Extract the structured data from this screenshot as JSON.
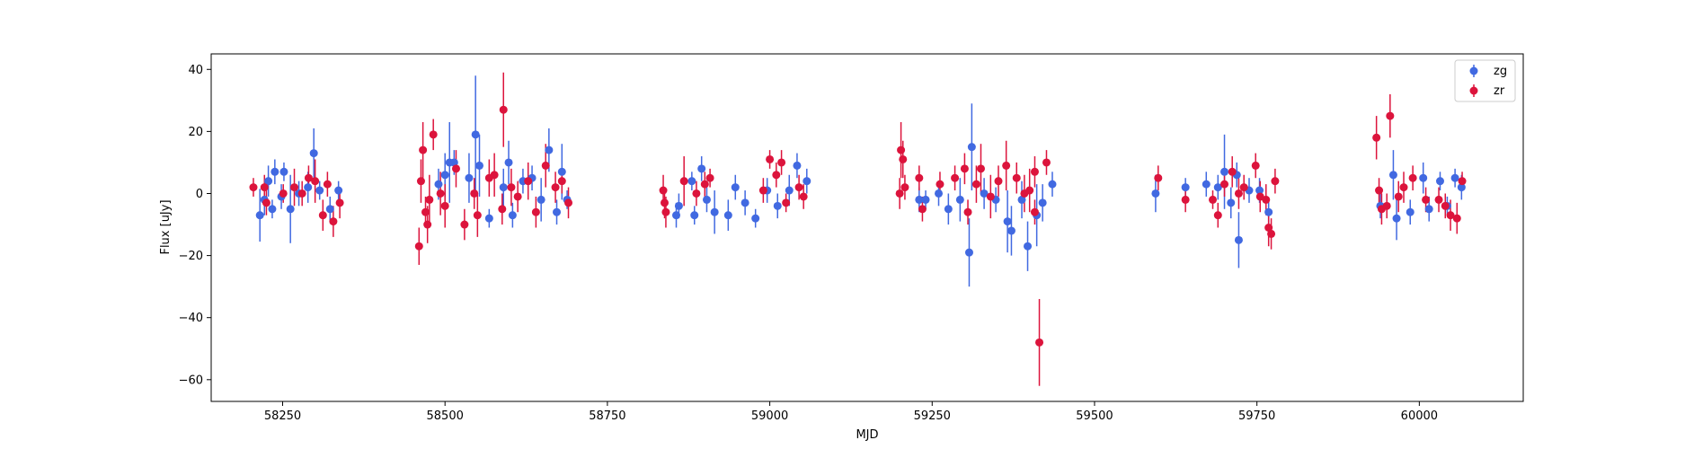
{
  "chart_data": {
    "type": "scatter",
    "xlabel": "MJD",
    "ylabel": "Flux [uJy]",
    "xlim": [
      58140,
      60160
    ],
    "ylim": [
      -67,
      45
    ],
    "xticks": [
      58250,
      58500,
      58750,
      59000,
      59250,
      59500,
      59750,
      60000
    ],
    "yticks": [
      -60,
      -40,
      -20,
      0,
      20,
      40
    ],
    "xtick_labels": [
      "58250",
      "58500",
      "58750",
      "59000",
      "59250",
      "59500",
      "59750",
      "60000"
    ],
    "ytick_labels": [
      "−60",
      "−40",
      "−20",
      "0",
      "20",
      "40"
    ],
    "grid": false,
    "legend_position": "top-right",
    "error_bars": true,
    "series": [
      {
        "name": "zg",
        "color": "#4169e1",
        "points": [
          [
            58215,
            -7,
            8.5
          ],
          [
            58222,
            -2,
            5
          ],
          [
            58228,
            4,
            5
          ],
          [
            58234,
            -5,
            3
          ],
          [
            58238,
            7,
            4
          ],
          [
            58248,
            -1,
            4
          ],
          [
            58252,
            7,
            3
          ],
          [
            58262,
            -5,
            11
          ],
          [
            58275,
            0,
            4
          ],
          [
            58289,
            2,
            5
          ],
          [
            58298,
            13,
            8
          ],
          [
            58307,
            1,
            3
          ],
          [
            58323,
            -5,
            4
          ],
          [
            58336,
            1,
            3
          ],
          [
            58490,
            3,
            5
          ],
          [
            58500,
            6,
            7
          ],
          [
            58507,
            10,
            13
          ],
          [
            58514,
            10,
            4
          ],
          [
            58537,
            5,
            8
          ],
          [
            58547,
            19,
            19
          ],
          [
            58553,
            9,
            10
          ],
          [
            58568,
            -8,
            3
          ],
          [
            58590,
            2,
            6
          ],
          [
            58598,
            10,
            7
          ],
          [
            58604,
            -7,
            4
          ],
          [
            58620,
            4,
            4
          ],
          [
            58634,
            5,
            4
          ],
          [
            58648,
            -2,
            7
          ],
          [
            58660,
            14,
            7
          ],
          [
            58672,
            -6,
            4
          ],
          [
            58680,
            7,
            9
          ],
          [
            58688,
            -2,
            3
          ],
          [
            58856,
            -7,
            4
          ],
          [
            58860,
            -4,
            4
          ],
          [
            58880,
            4,
            3
          ],
          [
            58884,
            -7,
            3
          ],
          [
            58895,
            8,
            4
          ],
          [
            58903,
            -2,
            4
          ],
          [
            58915,
            -6,
            7
          ],
          [
            58936,
            -7,
            5
          ],
          [
            58947,
            2,
            4
          ],
          [
            58962,
            -3,
            4
          ],
          [
            58978,
            -8,
            3
          ],
          [
            58996,
            1,
            4
          ],
          [
            59012,
            -4,
            4
          ],
          [
            59030,
            1,
            5
          ],
          [
            59042,
            9,
            4
          ],
          [
            59057,
            4,
            4
          ],
          [
            59230,
            -2,
            4
          ],
          [
            59240,
            -2,
            3
          ],
          [
            59260,
            0,
            4
          ],
          [
            59275,
            -5,
            5
          ],
          [
            59293,
            -2,
            7
          ],
          [
            59307,
            -19,
            11
          ],
          [
            59311,
            15,
            14
          ],
          [
            59330,
            0,
            5
          ],
          [
            59348,
            -2,
            4
          ],
          [
            59366,
            -9,
            10
          ],
          [
            59372,
            -12,
            8
          ],
          [
            59388,
            -2,
            6
          ],
          [
            59397,
            -17,
            8
          ],
          [
            59411,
            -7,
            10
          ],
          [
            59420,
            -3,
            6
          ],
          [
            59435,
            3,
            4
          ],
          [
            59594,
            0,
            6
          ],
          [
            59640,
            2,
            3
          ],
          [
            59672,
            3,
            4
          ],
          [
            59690,
            2,
            4
          ],
          [
            59700,
            7,
            12
          ],
          [
            59710,
            -3,
            5
          ],
          [
            59719,
            6,
            4
          ],
          [
            59722,
            -15,
            9
          ],
          [
            59738,
            1,
            4
          ],
          [
            59754,
            1,
            4
          ],
          [
            59768,
            -6,
            4
          ],
          [
            59940,
            -4,
            4
          ],
          [
            59960,
            6,
            8
          ],
          [
            59965,
            -8,
            7
          ],
          [
            59986,
            -6,
            4
          ],
          [
            60006,
            5,
            5
          ],
          [
            60015,
            -5,
            4
          ],
          [
            60032,
            4,
            3
          ],
          [
            60043,
            -4,
            3
          ],
          [
            60055,
            5,
            3
          ],
          [
            60065,
            2,
            4
          ]
        ]
      },
      {
        "name": "zr",
        "color": "#dc143c",
        "points": [
          [
            58205,
            2,
            3
          ],
          [
            58222,
            2,
            4
          ],
          [
            58225,
            -3,
            4
          ],
          [
            58251,
            0,
            3
          ],
          [
            58268,
            2,
            6
          ],
          [
            58280,
            0,
            4
          ],
          [
            58290,
            5,
            4
          ],
          [
            58300,
            4,
            7
          ],
          [
            58312,
            -7,
            5
          ],
          [
            58319,
            3,
            4
          ],
          [
            58328,
            -9,
            5
          ],
          [
            58338,
            -3,
            5
          ],
          [
            58460,
            -17,
            6
          ],
          [
            58463,
            4,
            7
          ],
          [
            58466,
            14,
            9
          ],
          [
            58470,
            -6,
            5
          ],
          [
            58473,
            -10,
            6
          ],
          [
            58476,
            -2,
            8
          ],
          [
            58482,
            19,
            5
          ],
          [
            58493,
            0,
            7
          ],
          [
            58500,
            -4,
            7
          ],
          [
            58517,
            8,
            6
          ],
          [
            58530,
            -10,
            5
          ],
          [
            58545,
            0,
            5
          ],
          [
            58550,
            -7,
            7
          ],
          [
            58568,
            5,
            6
          ],
          [
            58576,
            6,
            7
          ],
          [
            58588,
            -5,
            5
          ],
          [
            58590,
            27,
            12
          ],
          [
            58602,
            2,
            6
          ],
          [
            58612,
            -1,
            5
          ],
          [
            58628,
            4,
            6
          ],
          [
            58640,
            -6,
            5
          ],
          [
            58655,
            9,
            7
          ],
          [
            58670,
            2,
            5
          ],
          [
            58680,
            4,
            4
          ],
          [
            58690,
            -3,
            5
          ],
          [
            58836,
            1,
            5
          ],
          [
            58838,
            -3,
            5
          ],
          [
            58840,
            -6,
            5
          ],
          [
            58868,
            4,
            8
          ],
          [
            58887,
            0,
            4
          ],
          [
            58900,
            3,
            4
          ],
          [
            58908,
            5,
            3
          ],
          [
            58990,
            1,
            4
          ],
          [
            59000,
            11,
            3
          ],
          [
            59010,
            6,
            4
          ],
          [
            59018,
            10,
            4
          ],
          [
            59025,
            -3,
            3
          ],
          [
            59045,
            2,
            4
          ],
          [
            59052,
            -1,
            4
          ],
          [
            59200,
            0,
            5
          ],
          [
            59202,
            14,
            9
          ],
          [
            59205,
            11,
            6
          ],
          [
            59208,
            2,
            4
          ],
          [
            59230,
            5,
            4
          ],
          [
            59235,
            -5,
            4
          ],
          [
            59262,
            3,
            4
          ],
          [
            59285,
            5,
            4
          ],
          [
            59300,
            8,
            5
          ],
          [
            59305,
            -6,
            4
          ],
          [
            59318,
            3,
            6
          ],
          [
            59325,
            8,
            8
          ],
          [
            59340,
            -1,
            7
          ],
          [
            59352,
            4,
            5
          ],
          [
            59364,
            9,
            8
          ],
          [
            59380,
            5,
            5
          ],
          [
            59392,
            0,
            6
          ],
          [
            59400,
            1,
            7
          ],
          [
            59408,
            7,
            5
          ],
          [
            59415,
            -48,
            14
          ],
          [
            59426,
            10,
            4
          ],
          [
            59408,
            -6,
            4
          ],
          [
            59598,
            5,
            4
          ],
          [
            59640,
            -2,
            4
          ],
          [
            59682,
            -2,
            3
          ],
          [
            59690,
            -7,
            4
          ],
          [
            59700,
            3,
            4
          ],
          [
            59712,
            7,
            5
          ],
          [
            59722,
            0,
            5
          ],
          [
            59730,
            2,
            4
          ],
          [
            59748,
            9,
            4
          ],
          [
            59755,
            -1,
            5
          ],
          [
            59764,
            -2,
            5
          ],
          [
            59768,
            -11,
            6
          ],
          [
            59772,
            -13,
            5
          ],
          [
            59778,
            4,
            4
          ],
          [
            59934,
            18,
            7
          ],
          [
            59938,
            1,
            4
          ],
          [
            59942,
            -5,
            5
          ],
          [
            59950,
            -4,
            4
          ],
          [
            59955,
            25,
            7
          ],
          [
            59968,
            -1,
            5
          ],
          [
            59976,
            2,
            5
          ],
          [
            59990,
            5,
            4
          ],
          [
            60010,
            -2,
            4
          ],
          [
            60030,
            -2,
            4
          ],
          [
            60040,
            -4,
            4
          ],
          [
            60048,
            -7,
            5
          ],
          [
            60058,
            -8,
            5
          ],
          [
            60066,
            4,
            3
          ]
        ]
      }
    ]
  }
}
